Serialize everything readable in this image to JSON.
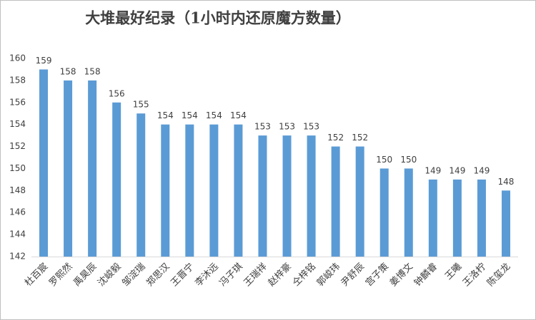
{
  "chart_data": {
    "type": "bar",
    "title": "大堆最好纪录（1小时内还原魔方数量）",
    "categories": [
      "杜百宸",
      "罗熙然",
      "禹昊辰",
      "沈峻毅",
      "邹淀瑞",
      "郑思汉",
      "王晋宁",
      "李沐远",
      "冯子琪",
      "王瑞祥",
      "赵梓豪",
      "仝梓铭",
      "郭峻玮",
      "尹舒辰",
      "宫子策",
      "姜博文",
      "钟麟睿",
      "王曦",
      "王洛柠",
      "陈玺龙"
    ],
    "values": [
      159,
      158,
      158,
      156,
      155,
      154,
      154,
      154,
      154,
      153,
      153,
      153,
      152,
      152,
      150,
      150,
      149,
      149,
      149,
      148
    ],
    "color": "#5b9bd5",
    "ylim": [
      142,
      160
    ],
    "yticks": [
      142,
      144,
      146,
      148,
      150,
      152,
      154,
      156,
      158,
      160
    ],
    "grid": false
  }
}
